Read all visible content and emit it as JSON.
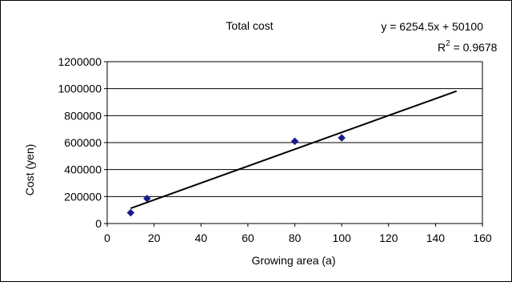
{
  "chart_data": {
    "type": "scatter",
    "title": "Total cost",
    "xlabel": "Growing area (a)",
    "ylabel": "Cost (yen)",
    "xlim": [
      0,
      160
    ],
    "ylim": [
      0,
      1200000
    ],
    "x_ticks": [
      0,
      20,
      40,
      60,
      80,
      100,
      120,
      140,
      160
    ],
    "y_ticks": [
      0,
      200000,
      400000,
      600000,
      800000,
      1000000,
      1200000
    ],
    "x_tick_labels": [
      "0",
      "20",
      "40",
      "60",
      "80",
      "100",
      "120",
      "140",
      "160"
    ],
    "y_tick_labels": [
      "0",
      "200000",
      "400000",
      "600000",
      "800000",
      "1000000",
      "1200000"
    ],
    "grid": "horizontal",
    "legend": "none",
    "series": [
      {
        "points": [
          {
            "x": 10,
            "y": 80000
          },
          {
            "x": 17,
            "y": 185000
          },
          {
            "x": 80,
            "y": 610000
          },
          {
            "x": 100,
            "y": 635000
          }
        ]
      }
    ],
    "trendline": {
      "equation": "y = 6254.5x + 50100",
      "r2_prefix": "R",
      "r2_sup": "2",
      "r2_value": " = 0.9678",
      "slope": 6254.5,
      "intercept": 50100,
      "x_range": [
        10,
        149
      ]
    },
    "colors": {
      "marker": "#1a1a8c",
      "trendline": "#000000",
      "grid": "#000000",
      "frame": "#000000"
    }
  }
}
